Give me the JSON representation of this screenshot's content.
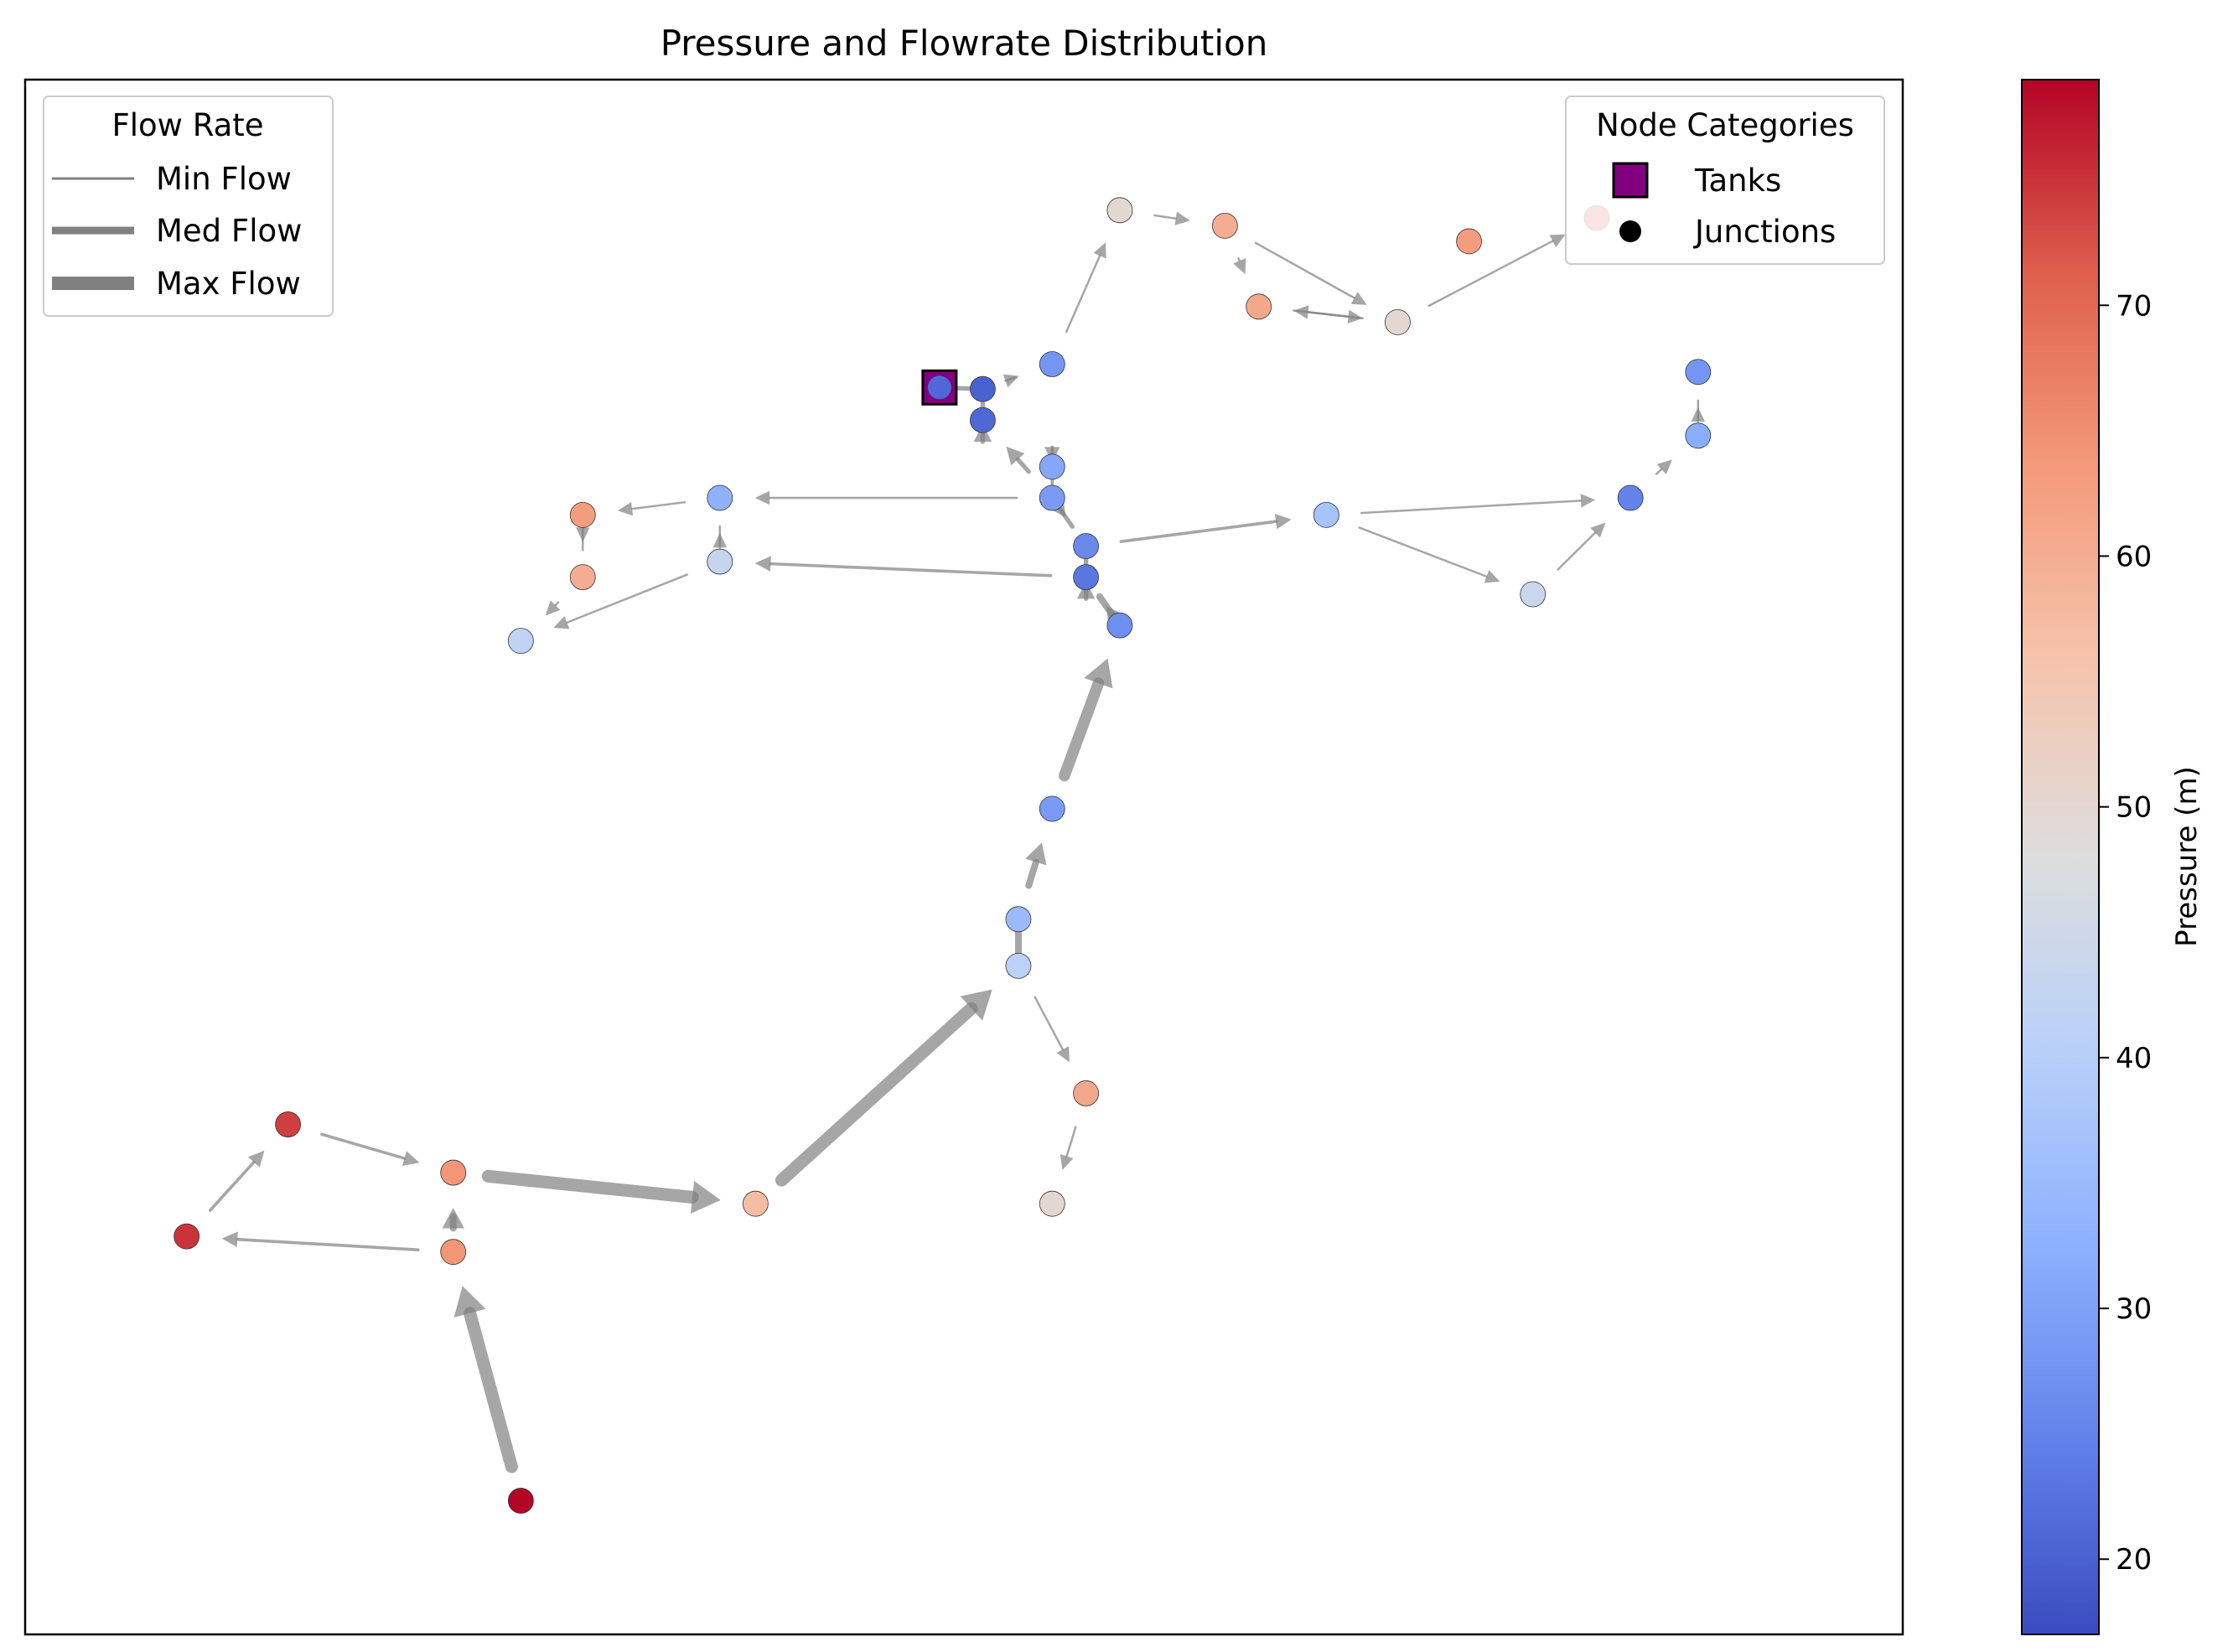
{
  "chart_data": {
    "type": "network",
    "title": "Pressure and Flowrate Distribution",
    "x_range": [
      0,
      100
    ],
    "y_range": [
      0,
      100
    ],
    "pressure_range": [
      17,
      79
    ],
    "colormap": "coolwarm",
    "flow_legend": {
      "title": "Flow Rate",
      "placement": "upper-left",
      "entries": [
        {
          "label": "Min Flow",
          "level": 1
        },
        {
          "label": "Med Flow",
          "level": 2
        },
        {
          "label": "Max Flow",
          "level": 3
        }
      ]
    },
    "node_legend": {
      "title": "Node Categories",
      "placement": "upper-right",
      "entries": [
        {
          "label": "Tanks",
          "color": "#800080",
          "marker": "square"
        },
        {
          "label": "Junctions",
          "color": "#000000",
          "marker": "circle"
        }
      ]
    },
    "colorbar": {
      "label": "Pressure (m)",
      "ticks": [
        20,
        30,
        40,
        50,
        60,
        70
      ]
    },
    "tanks": [
      {
        "id": "T1",
        "x": 48.7,
        "y": 80.2,
        "pressure": 21
      }
    ],
    "junctions": [
      {
        "id": "J1",
        "x": 54.7,
        "y": 81.7,
        "pressure": 28
      },
      {
        "id": "J2",
        "x": 58.3,
        "y": 91.6,
        "pressure": 50
      },
      {
        "id": "J3",
        "x": 63.9,
        "y": 90.6,
        "pressure": 60
      },
      {
        "id": "J4",
        "x": 65.7,
        "y": 85.4,
        "pressure": 61
      },
      {
        "id": "J5",
        "x": 73.1,
        "y": 84.4,
        "pressure": 50
      },
      {
        "id": "J6",
        "x": 76.9,
        "y": 89.6,
        "pressure": 63
      },
      {
        "id": "J7",
        "x": 83.7,
        "y": 91.1,
        "pressure": 73
      },
      {
        "id": "J8",
        "x": 51.0,
        "y": 80.1,
        "pressure": 20
      },
      {
        "id": "J9",
        "x": 51.0,
        "y": 78.1,
        "pressure": 21
      },
      {
        "id": "J10",
        "x": 54.7,
        "y": 75.1,
        "pressure": 31
      },
      {
        "id": "J11",
        "x": 54.7,
        "y": 73.1,
        "pressure": 29
      },
      {
        "id": "J12",
        "x": 56.5,
        "y": 70.0,
        "pressure": 26
      },
      {
        "id": "J13",
        "x": 56.5,
        "y": 68.0,
        "pressure": 23
      },
      {
        "id": "J14",
        "x": 58.3,
        "y": 64.9,
        "pressure": 27
      },
      {
        "id": "J15",
        "x": 37.0,
        "y": 73.1,
        "pressure": 33
      },
      {
        "id": "J16",
        "x": 37.0,
        "y": 69.0,
        "pressure": 43
      },
      {
        "id": "J17",
        "x": 29.7,
        "y": 72.0,
        "pressure": 63
      },
      {
        "id": "J18",
        "x": 29.7,
        "y": 68.0,
        "pressure": 60
      },
      {
        "id": "J19",
        "x": 26.4,
        "y": 63.9,
        "pressure": 42
      },
      {
        "id": "J20",
        "x": 69.3,
        "y": 72.0,
        "pressure": 37
      },
      {
        "id": "J21",
        "x": 80.3,
        "y": 66.9,
        "pressure": 44
      },
      {
        "id": "J22",
        "x": 85.5,
        "y": 73.1,
        "pressure": 25
      },
      {
        "id": "J23",
        "x": 89.1,
        "y": 77.1,
        "pressure": 32
      },
      {
        "id": "J24",
        "x": 89.1,
        "y": 81.2,
        "pressure": 28
      },
      {
        "id": "J25",
        "x": 54.7,
        "y": 53.1,
        "pressure": 29
      },
      {
        "id": "J26",
        "x": 52.9,
        "y": 46.0,
        "pressure": 35
      },
      {
        "id": "J27",
        "x": 52.9,
        "y": 43.0,
        "pressure": 41
      },
      {
        "id": "J28",
        "x": 56.5,
        "y": 34.8,
        "pressure": 61
      },
      {
        "id": "J29",
        "x": 54.7,
        "y": 27.7,
        "pressure": 50
      },
      {
        "id": "J30",
        "x": 38.9,
        "y": 27.7,
        "pressure": 57
      },
      {
        "id": "J31",
        "x": 22.8,
        "y": 29.7,
        "pressure": 64
      },
      {
        "id": "J32",
        "x": 22.8,
        "y": 24.6,
        "pressure": 64
      },
      {
        "id": "J33",
        "x": 14.0,
        "y": 32.8,
        "pressure": 74
      },
      {
        "id": "J34",
        "x": 8.6,
        "y": 25.6,
        "pressure": 75
      },
      {
        "id": "J35",
        "x": 26.4,
        "y": 8.6,
        "pressure": 79
      }
    ],
    "pipes": [
      {
        "from": "J8",
        "to": "T1",
        "flow": 1.5
      },
      {
        "from": "J8",
        "to": "J1",
        "flow": 1
      },
      {
        "from": "J1",
        "to": "J2",
        "flow": 1
      },
      {
        "from": "J2",
        "to": "J3",
        "flow": 1
      },
      {
        "from": "J3",
        "to": "J5",
        "flow": 1
      },
      {
        "from": "J3",
        "to": "J4",
        "flow": 1
      },
      {
        "from": "J5",
        "to": "J4",
        "flow": 1
      },
      {
        "from": "J4",
        "to": "J5",
        "flow": 1
      },
      {
        "from": "J5",
        "to": "J7",
        "flow": 1
      },
      {
        "from": "J9",
        "to": "J8",
        "flow": 1.5
      },
      {
        "from": "J11",
        "to": "J9",
        "flow": 1.5
      },
      {
        "from": "J10",
        "to": "J11",
        "flow": 1.2
      },
      {
        "from": "J11",
        "to": "J12",
        "flow": 1.5
      },
      {
        "from": "J13",
        "to": "J12",
        "flow": 1.5
      },
      {
        "from": "J14",
        "to": "J13",
        "flow": 2
      },
      {
        "from": "J11",
        "to": "J15",
        "flow": 1
      },
      {
        "from": "J15",
        "to": "J17",
        "flow": 1
      },
      {
        "from": "J17",
        "to": "J18",
        "flow": 1
      },
      {
        "from": "J18",
        "to": "J19",
        "flow": 1
      },
      {
        "from": "J16",
        "to": "J19",
        "flow": 1
      },
      {
        "from": "J16",
        "to": "J15",
        "flow": 1
      },
      {
        "from": "J13",
        "to": "J16",
        "flow": 1.2
      },
      {
        "from": "J12",
        "to": "J20",
        "flow": 1.2
      },
      {
        "from": "J20",
        "to": "J22",
        "flow": 1
      },
      {
        "from": "J20",
        "to": "J21",
        "flow": 1
      },
      {
        "from": "J21",
        "to": "J22",
        "flow": 1
      },
      {
        "from": "J22",
        "to": "J23",
        "flow": 1
      },
      {
        "from": "J23",
        "to": "J24",
        "flow": 1
      },
      {
        "from": "J25",
        "to": "J14",
        "flow": 3
      },
      {
        "from": "J26",
        "to": "J25",
        "flow": 2
      },
      {
        "from": "J27",
        "to": "J26",
        "flow": 2
      },
      {
        "from": "J27",
        "to": "J28",
        "flow": 1
      },
      {
        "from": "J28",
        "to": "J29",
        "flow": 1
      },
      {
        "from": "J30",
        "to": "J27",
        "flow": 3.3
      },
      {
        "from": "J31",
        "to": "J30",
        "flow": 3.3
      },
      {
        "from": "J32",
        "to": "J31",
        "flow": 2
      },
      {
        "from": "J32",
        "to": "J34",
        "flow": 1.2
      },
      {
        "from": "J34",
        "to": "J33",
        "flow": 1.2
      },
      {
        "from": "J33",
        "to": "J31",
        "flow": 1.2
      },
      {
        "from": "J35",
        "to": "J32",
        "flow": 3.3
      }
    ]
  }
}
